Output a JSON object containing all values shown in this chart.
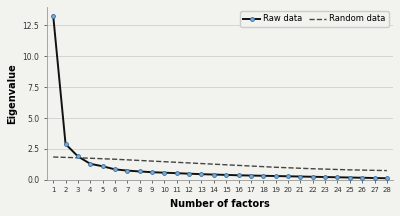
{
  "raw_x": [
    1,
    2,
    3,
    4,
    5,
    6,
    7,
    8,
    9,
    10,
    11,
    12,
    13,
    14,
    15,
    16,
    17,
    18,
    19,
    20,
    21,
    22,
    23,
    24,
    25,
    26,
    27,
    28
  ],
  "raw_y": [
    13.3,
    2.9,
    1.9,
    1.3,
    1.1,
    0.85,
    0.75,
    0.68,
    0.62,
    0.58,
    0.54,
    0.5,
    0.46,
    0.43,
    0.4,
    0.37,
    0.35,
    0.33,
    0.31,
    0.29,
    0.27,
    0.25,
    0.23,
    0.21,
    0.19,
    0.17,
    0.15,
    0.13
  ],
  "random_x": [
    1,
    2,
    3,
    4,
    5,
    6,
    7,
    8,
    9,
    10,
    11,
    12,
    13,
    14,
    15,
    16,
    17,
    18,
    19,
    20,
    21,
    22,
    23,
    24,
    25,
    26,
    27,
    28
  ],
  "random_y": [
    1.85,
    1.82,
    1.79,
    1.75,
    1.71,
    1.67,
    1.62,
    1.57,
    1.52,
    1.47,
    1.42,
    1.37,
    1.32,
    1.27,
    1.22,
    1.17,
    1.12,
    1.07,
    1.02,
    0.98,
    0.94,
    0.9,
    0.87,
    0.84,
    0.81,
    0.79,
    0.77,
    0.75
  ],
  "raw_color": "#111111",
  "random_color": "#444444",
  "marker_color": "#3a6ea5",
  "marker_face": "#7aaed0",
  "xlabel": "Number of factors",
  "ylabel": "Eigenvalue",
  "ylim": [
    0.0,
    14.0
  ],
  "yticks": [
    0.0,
    2.5,
    5.0,
    7.5,
    10.0,
    12.5
  ],
  "xticks": [
    1,
    2,
    3,
    4,
    5,
    6,
    7,
    8,
    9,
    10,
    11,
    12,
    13,
    14,
    15,
    16,
    17,
    18,
    19,
    20,
    21,
    22,
    23,
    24,
    25,
    26,
    27,
    28
  ],
  "legend_raw": "Raw data",
  "legend_random": "Random data",
  "bg_color": "#f2f2ee",
  "grid_color": "#d0d0cc"
}
